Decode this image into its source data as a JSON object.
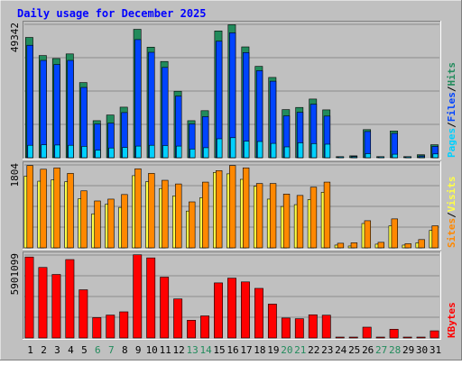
{
  "title": "Daily usage for December 2025",
  "colors": {
    "background": "#c0c0c0",
    "plot": "#c0c0c0",
    "title": "#0000ff",
    "hits": "#228b5c",
    "files": "#0044ff",
    "pages": "#00d0ff",
    "visits": "#ffff44",
    "sites": "#ff8800",
    "kbytes": "#ff0000",
    "weekend_day": "#228b5c",
    "weekday": "#000000"
  },
  "chart_data": [
    {
      "type": "bar",
      "panel": "hits-files-pages",
      "y_max_label": "49342",
      "ylim": [
        0,
        49342
      ],
      "legend": {
        "hits": "Hits",
        "files": "Files",
        "pages": "Pages",
        "sep": "/"
      },
      "categories": [
        "1",
        "2",
        "3",
        "4",
        "5",
        "6",
        "7",
        "8",
        "9",
        "10",
        "11",
        "12",
        "13",
        "14",
        "15",
        "16",
        "17",
        "18",
        "19",
        "20",
        "21",
        "22",
        "23",
        "24",
        "25",
        "26",
        "27",
        "28",
        "29",
        "30",
        "31"
      ],
      "series": [
        {
          "name": "Hits",
          "values": [
            44500,
            37800,
            36700,
            38400,
            27800,
            13700,
            15800,
            18700,
            47500,
            40900,
            35600,
            24600,
            13700,
            17400,
            46900,
            49200,
            41000,
            33800,
            29700,
            17800,
            18600,
            21700,
            17700,
            400,
            700,
            10400,
            400,
            9900,
            400,
            1100,
            4800
          ]
        },
        {
          "name": "Files",
          "values": [
            41600,
            36000,
            34500,
            36000,
            26000,
            12500,
            12800,
            16700,
            43700,
            39000,
            33400,
            22800,
            12500,
            15200,
            43100,
            46200,
            38900,
            32200,
            28300,
            15500,
            16800,
            19800,
            15400,
            300,
            500,
            9700,
            300,
            9000,
            300,
            700,
            4200
          ]
        },
        {
          "name": "Pages",
          "values": [
            4600,
            4800,
            4700,
            4600,
            4200,
            2800,
            3600,
            3800,
            4300,
            4600,
            4500,
            4300,
            3200,
            3700,
            7000,
            7400,
            6100,
            6000,
            5300,
            4000,
            5500,
            5200,
            5000,
            100,
            100,
            1500,
            100,
            1300,
            100,
            200,
            1400
          ]
        }
      ]
    },
    {
      "type": "bar",
      "panel": "visits-sites",
      "y_max_label": "1804",
      "ylim": [
        0,
        1804
      ],
      "legend": {
        "visits": "Visits",
        "sites": "Sites",
        "sep": "/"
      },
      "categories": [
        "1",
        "2",
        "3",
        "4",
        "5",
        "6",
        "7",
        "8",
        "9",
        "10",
        "11",
        "12",
        "13",
        "14",
        "15",
        "16",
        "17",
        "18",
        "19",
        "20",
        "21",
        "22",
        "23",
        "24",
        "25",
        "26",
        "27",
        "28",
        "29",
        "30",
        "31"
      ],
      "series": [
        {
          "name": "Visits",
          "values": [
            1560,
            1450,
            1480,
            1440,
            1070,
            740,
            950,
            880,
            1570,
            1440,
            1290,
            1130,
            800,
            1090,
            1640,
            1610,
            1490,
            1340,
            1060,
            900,
            940,
            1050,
            1210,
            60,
            40,
            530,
            80,
            480,
            60,
            110,
            380
          ]
        },
        {
          "name": "Sites",
          "values": [
            1790,
            1710,
            1740,
            1620,
            1240,
            1020,
            1060,
            1160,
            1720,
            1620,
            1470,
            1390,
            1000,
            1430,
            1680,
            1790,
            1740,
            1400,
            1400,
            1170,
            1140,
            1320,
            1430,
            100,
            110,
            590,
            120,
            630,
            90,
            180,
            480
          ]
        }
      ]
    },
    {
      "type": "bar",
      "panel": "kbytes",
      "y_max_label": "5901099",
      "ylim": [
        0,
        5901099
      ],
      "legend": {
        "kbytes": "KBytes"
      },
      "categories": [
        "1",
        "2",
        "3",
        "4",
        "5",
        "6",
        "7",
        "8",
        "9",
        "10",
        "11",
        "12",
        "13",
        "14",
        "15",
        "16",
        "17",
        "18",
        "19",
        "20",
        "21",
        "22",
        "23",
        "24",
        "25",
        "26",
        "27",
        "28",
        "29",
        "30",
        "31"
      ],
      "series": [
        {
          "name": "KBytes",
          "values": [
            5760000,
            5020000,
            4520000,
            5580000,
            3430000,
            1450000,
            1630000,
            1860000,
            5920000,
            5700000,
            4330000,
            2780000,
            1260000,
            1570000,
            3920000,
            4260000,
            3990000,
            3530000,
            2410000,
            1420000,
            1370000,
            1650000,
            1620000,
            15000,
            20000,
            770000,
            20000,
            620000,
            20000,
            60000,
            510000
          ]
        }
      ]
    }
  ],
  "weekend_days": [
    "6",
    "7",
    "13",
    "14",
    "20",
    "21",
    "27",
    "28"
  ]
}
